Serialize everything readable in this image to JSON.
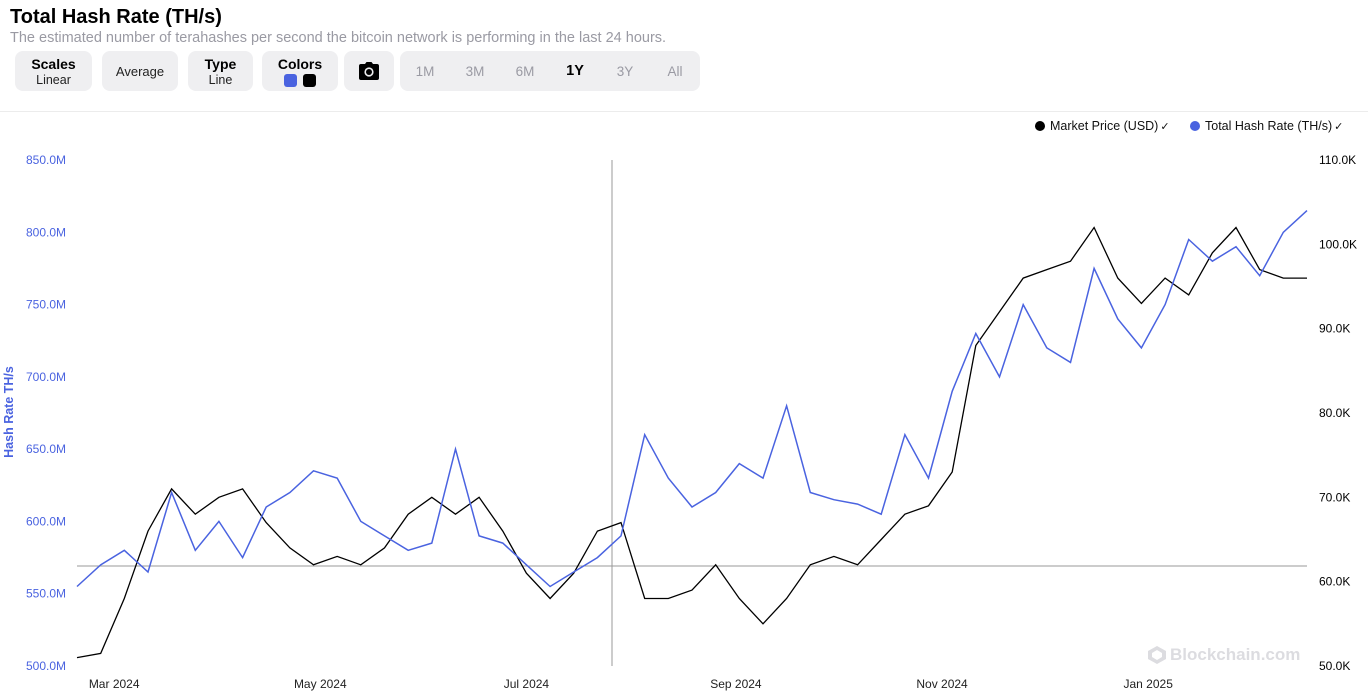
{
  "header": {
    "title": "Total Hash Rate (TH/s)",
    "subtitle": "The estimated number of terahashes per second the bitcoin network is performing in the last 24 hours."
  },
  "controls": {
    "scales": {
      "title": "Scales",
      "value": "Linear"
    },
    "average": {
      "label": "Average"
    },
    "type": {
      "title": "Type",
      "value": "Line"
    },
    "colors": {
      "title": "Colors",
      "swatches": [
        "#4a63e0",
        "#000000"
      ]
    },
    "camera_icon": "camera-icon",
    "ranges": [
      "1M",
      "3M",
      "6M",
      "1Y",
      "3Y",
      "All"
    ],
    "active_range": "1Y"
  },
  "legend": {
    "market_price": "Market Price (USD)",
    "hash_rate": "Total Hash Rate (TH/s)"
  },
  "watermark": "Blockchain.com",
  "chart_data": {
    "type": "line",
    "ylabel": "Hash Rate TH/s",
    "x_tick_labels": [
      "Mar 2024",
      "May 2024",
      "Jul 2024",
      "Sep 2024",
      "Nov 2024",
      "Jan 2025"
    ],
    "y_left_ticks": [
      "850.0M",
      "800.0M",
      "750.0M",
      "700.0M",
      "650.0M",
      "600.0M",
      "550.0M",
      "500.0M"
    ],
    "y_right_ticks": [
      "110.0K",
      "100.0K",
      "90.0K",
      "80.0K",
      "70.0K",
      "60.0K",
      "50.0K"
    ],
    "ylim_left": [
      500,
      850
    ],
    "ylim_right": [
      50,
      110
    ],
    "colors": {
      "hash_rate": "#4a63e0",
      "market_price": "#000000",
      "left_axis": "#4a63e0"
    },
    "series": [
      {
        "name": "Total Hash Rate (TH/s)",
        "axis": "left",
        "unit": "M TH/s",
        "x": [
          "2024-02-19",
          "2024-02-26",
          "2024-03-04",
          "2024-03-11",
          "2024-03-18",
          "2024-03-25",
          "2024-04-01",
          "2024-04-08",
          "2024-04-15",
          "2024-04-22",
          "2024-04-29",
          "2024-05-06",
          "2024-05-13",
          "2024-05-20",
          "2024-05-27",
          "2024-06-03",
          "2024-06-10",
          "2024-06-17",
          "2024-06-24",
          "2024-07-01",
          "2024-07-08",
          "2024-07-15",
          "2024-07-22",
          "2024-07-29",
          "2024-08-05",
          "2024-08-12",
          "2024-08-19",
          "2024-08-26",
          "2024-09-02",
          "2024-09-09",
          "2024-09-16",
          "2024-09-23",
          "2024-09-30",
          "2024-10-07",
          "2024-10-14",
          "2024-10-21",
          "2024-10-28",
          "2024-11-04",
          "2024-11-11",
          "2024-11-18",
          "2024-11-25",
          "2024-12-02",
          "2024-12-09",
          "2024-12-16",
          "2024-12-23",
          "2024-12-30",
          "2025-01-06",
          "2025-01-13",
          "2025-01-20",
          "2025-01-27",
          "2025-02-03",
          "2025-02-10",
          "2025-02-17"
        ],
        "values": [
          555,
          570,
          580,
          565,
          620,
          580,
          600,
          575,
          610,
          620,
          635,
          630,
          600,
          590,
          580,
          585,
          650,
          590,
          585,
          570,
          555,
          565,
          575,
          590,
          660,
          630,
          610,
          620,
          640,
          630,
          680,
          620,
          615,
          612,
          605,
          660,
          630,
          690,
          730,
          700,
          750,
          720,
          710,
          775,
          740,
          720,
          750,
          795,
          780,
          790,
          770,
          800,
          815
        ]
      },
      {
        "name": "Market Price (USD)",
        "axis": "right",
        "unit": "K USD",
        "x": [
          "2024-02-19",
          "2024-02-26",
          "2024-03-04",
          "2024-03-11",
          "2024-03-18",
          "2024-03-25",
          "2024-04-01",
          "2024-04-08",
          "2024-04-15",
          "2024-04-22",
          "2024-04-29",
          "2024-05-06",
          "2024-05-13",
          "2024-05-20",
          "2024-05-27",
          "2024-06-03",
          "2024-06-10",
          "2024-06-17",
          "2024-06-24",
          "2024-07-01",
          "2024-07-08",
          "2024-07-15",
          "2024-07-22",
          "2024-07-29",
          "2024-08-05",
          "2024-08-12",
          "2024-08-19",
          "2024-08-26",
          "2024-09-02",
          "2024-09-09",
          "2024-09-16",
          "2024-09-23",
          "2024-09-30",
          "2024-10-07",
          "2024-10-14",
          "2024-10-21",
          "2024-10-28",
          "2024-11-04",
          "2024-11-11",
          "2024-11-18",
          "2024-11-25",
          "2024-12-02",
          "2024-12-09",
          "2024-12-16",
          "2024-12-23",
          "2024-12-30",
          "2025-01-06",
          "2025-01-13",
          "2025-01-20",
          "2025-01-27",
          "2025-02-03",
          "2025-02-10",
          "2025-02-17"
        ],
        "values": [
          51,
          51.5,
          58,
          66,
          71,
          68,
          70,
          71,
          67,
          64,
          62,
          63,
          62,
          64,
          68,
          70,
          68,
          70,
          66,
          61,
          58,
          61,
          66,
          67,
          58,
          58,
          59,
          62,
          58,
          55,
          58,
          62,
          63,
          62,
          65,
          68,
          69,
          73,
          88,
          92,
          96,
          97,
          98,
          102,
          96,
          93,
          96,
          94,
          99,
          102,
          97,
          96,
          96
        ]
      }
    ]
  }
}
